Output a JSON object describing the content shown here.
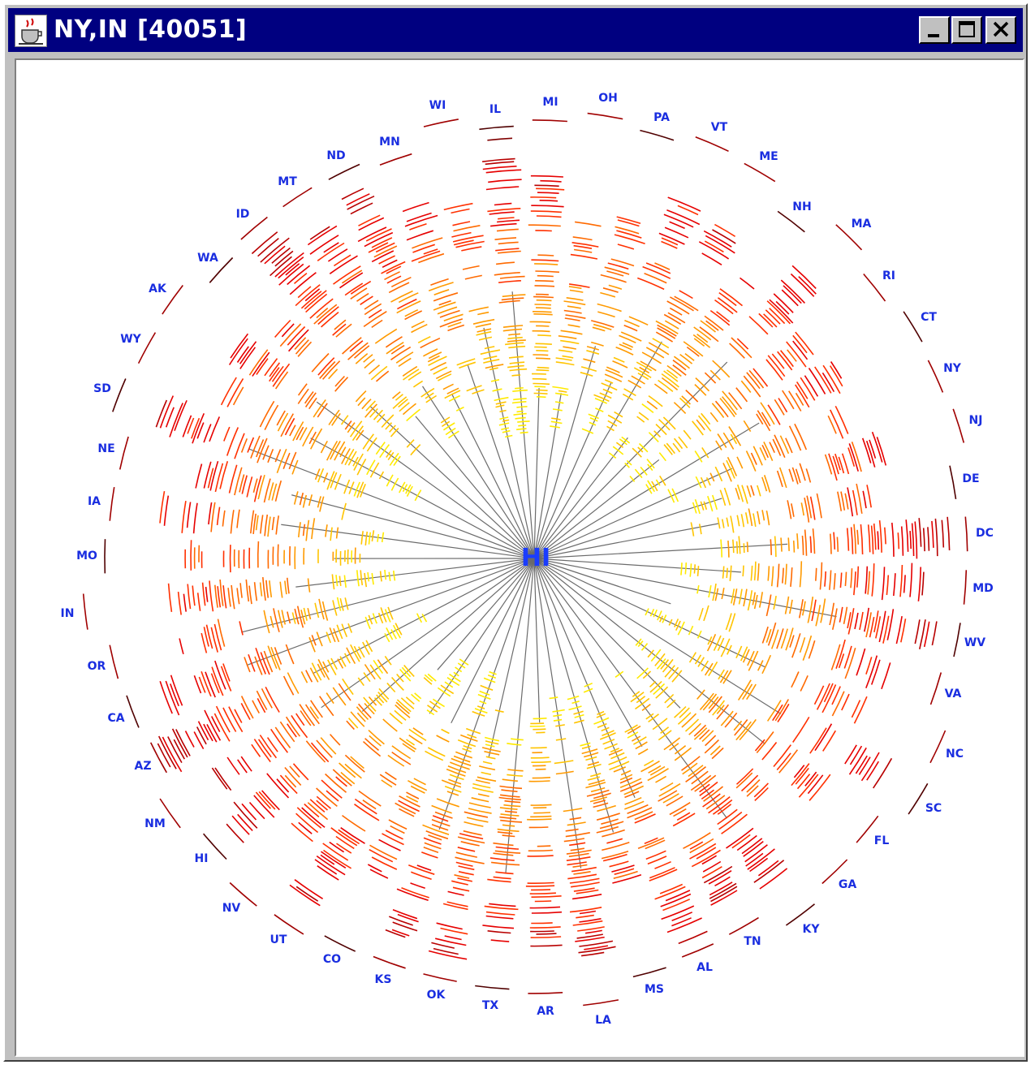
{
  "window": {
    "title": "NY,IN [40051]",
    "controls": {
      "minimize": "minimize",
      "maximize": "maximize",
      "close": "close"
    }
  },
  "visualization": {
    "center_label": "HI",
    "colors": {
      "background": "#ffffff",
      "title_bar": "#000080",
      "label": "#1a2ee0",
      "spoke": "#6b6b6b"
    },
    "palette": [
      "#ffea00",
      "#ffc400",
      "#ff9a00",
      "#ff6a00",
      "#ff3000",
      "#e60000",
      "#b80000",
      "#800000"
    ],
    "states": [
      {
        "id": "IL",
        "label": "IL"
      },
      {
        "id": "MI",
        "label": "MI"
      },
      {
        "id": "OH",
        "label": "OH"
      },
      {
        "id": "PA",
        "label": "PA"
      },
      {
        "id": "VT",
        "label": "VT"
      },
      {
        "id": "ME",
        "label": "ME"
      },
      {
        "id": "NH",
        "label": "NH"
      },
      {
        "id": "MA",
        "label": "MA"
      },
      {
        "id": "RI",
        "label": "RI"
      },
      {
        "id": "CT",
        "label": "CT"
      },
      {
        "id": "NY",
        "label": "NY"
      },
      {
        "id": "NJ",
        "label": "NJ"
      },
      {
        "id": "DE",
        "label": "DE"
      },
      {
        "id": "DC",
        "label": "DC"
      },
      {
        "id": "MD",
        "label": "MD"
      },
      {
        "id": "WV",
        "label": "WV"
      },
      {
        "id": "VA",
        "label": "VA"
      },
      {
        "id": "NC",
        "label": "NC"
      },
      {
        "id": "SC",
        "label": "SC"
      },
      {
        "id": "FL",
        "label": "FL"
      },
      {
        "id": "GA",
        "label": "GA"
      },
      {
        "id": "KY",
        "label": "KY"
      },
      {
        "id": "TN",
        "label": "TN"
      },
      {
        "id": "AL",
        "label": "AL"
      },
      {
        "id": "MS",
        "label": "MS"
      },
      {
        "id": "LA",
        "label": "LA"
      },
      {
        "id": "AR",
        "label": "AR"
      },
      {
        "id": "TX",
        "label": "TX"
      },
      {
        "id": "OK",
        "label": "OK"
      },
      {
        "id": "KS",
        "label": "KS"
      },
      {
        "id": "CO",
        "label": "CO"
      },
      {
        "id": "UT",
        "label": "UT"
      },
      {
        "id": "NV",
        "label": "NV"
      },
      {
        "id": "HI",
        "label": "HI"
      },
      {
        "id": "NM",
        "label": "NM"
      },
      {
        "id": "AZ",
        "label": "AZ"
      },
      {
        "id": "CA",
        "label": "CA"
      },
      {
        "id": "OR",
        "label": "OR"
      },
      {
        "id": "IN",
        "label": "IN"
      },
      {
        "id": "MO",
        "label": "MO"
      },
      {
        "id": "IA",
        "label": "IA"
      },
      {
        "id": "NE",
        "label": "NE"
      },
      {
        "id": "SD",
        "label": "SD"
      },
      {
        "id": "WY",
        "label": "WY"
      },
      {
        "id": "AK",
        "label": "AK"
      },
      {
        "id": "WA",
        "label": "WA"
      },
      {
        "id": "ID",
        "label": "ID"
      },
      {
        "id": "MT",
        "label": "MT"
      },
      {
        "id": "ND",
        "label": "ND"
      },
      {
        "id": "MN",
        "label": "MN"
      },
      {
        "id": "WI",
        "label": "WI"
      }
    ]
  }
}
